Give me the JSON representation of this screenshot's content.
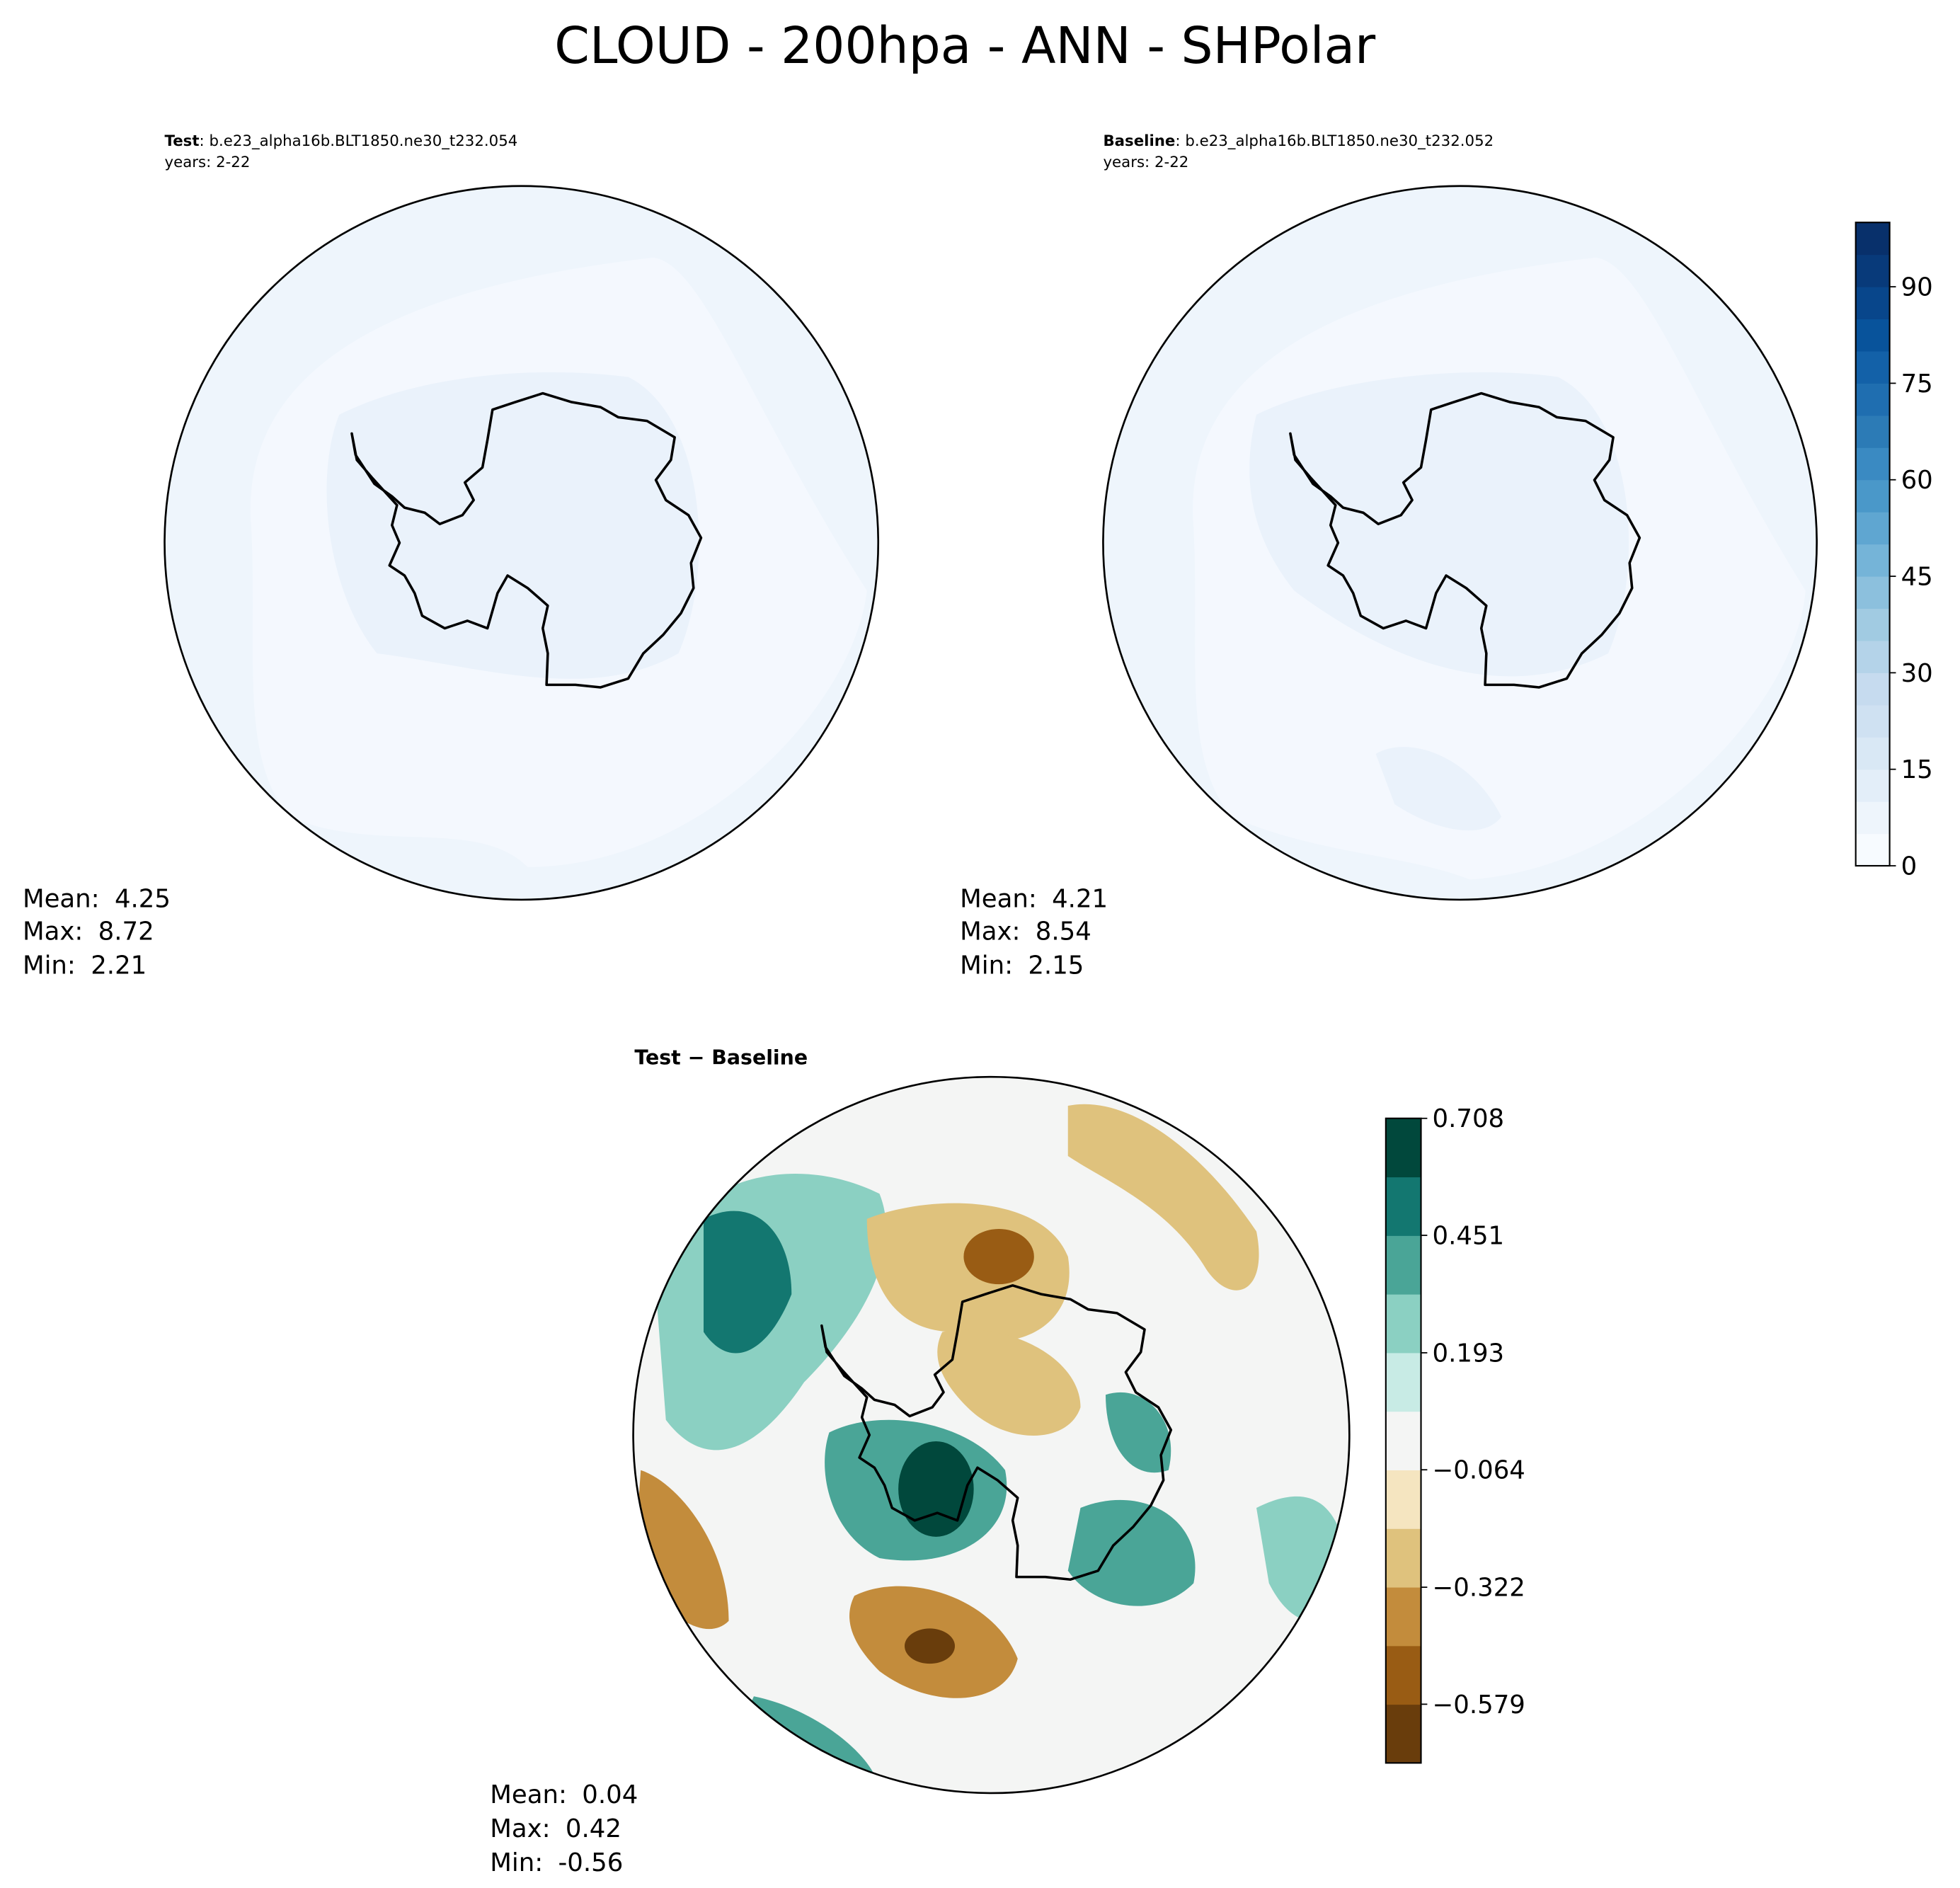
{
  "title": "CLOUD - 200hpa - ANN - SHPolar",
  "panels": [
    {
      "label": "Test",
      "case": ": b.e23_alpha16b.BLT1850.ne30_t232.054",
      "years": "years: 2-22",
      "stats": [
        {
          "label": "Mean:",
          "value": 4.25
        },
        {
          "label": "Max:",
          "value": 8.72
        },
        {
          "label": "Min:",
          "value": 2.21
        }
      ]
    },
    {
      "label": "Baseline",
      "case": ": b.e23_alpha16b.BLT1850.ne30_t232.052",
      "years": "years: 2-22",
      "stats": [
        {
          "label": "Mean:",
          "value": 4.21
        },
        {
          "label": "Max:",
          "value": 8.54
        },
        {
          "label": "Min:",
          "value": 2.15
        }
      ]
    },
    {
      "label": "Test − Baseline",
      "stats": [
        {
          "label": "Mean:",
          "value": 0.04
        },
        {
          "label": "Max:",
          "value": 0.42
        },
        {
          "label": "Min:",
          "value": -0.56
        }
      ]
    }
  ],
  "colorbars": [
    {
      "ylim": [
        0,
        100
      ],
      "yticks": [
        0,
        15,
        30,
        45,
        60,
        75,
        90
      ],
      "colors": [
        "#f7fbff",
        "#eef5fc",
        "#e3eef9",
        "#d9e8f5",
        "#cfe1f2",
        "#c6dbef",
        "#b4d3e9",
        "#a1cbe2",
        "#8cc0dd",
        "#75b4d8",
        "#5fa6d1",
        "#4a98c9",
        "#3a8ac2",
        "#2c7bb6",
        "#1f6eb0",
        "#1361a8",
        "#08539b",
        "#08468b",
        "#083a7a",
        "#08306b"
      ]
    },
    {
      "ylim": [
        -0.708,
        0.708
      ],
      "yticks": [
        {
          "value": -0.579,
          "label": "−0.579"
        },
        {
          "value": -0.322,
          "label": "−0.322"
        },
        {
          "value": -0.064,
          "label": "−0.064"
        },
        0.193,
        0.451,
        0.708
      ],
      "colors": [
        "#693d0c",
        "#995c14",
        "#c38c3c",
        "#dfc27d",
        "#f5e5c0",
        "#f4f5f4",
        "#c8ebe5",
        "#8bd0c2",
        "#4aa597",
        "#137770",
        "#01483c"
      ]
    }
  ]
}
